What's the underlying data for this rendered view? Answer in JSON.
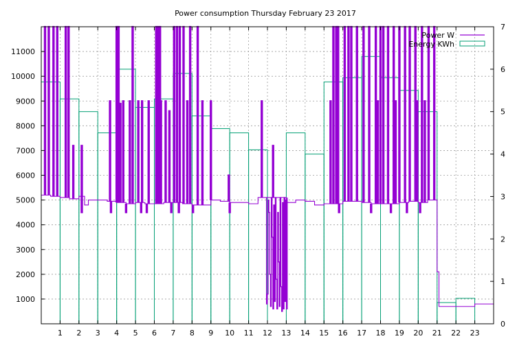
{
  "chart_data": {
    "type": "bar",
    "title": "Power consumption Thursday February 23 2017",
    "legend_position": "top-right",
    "grid": true,
    "x": {
      "range": [
        0,
        24
      ],
      "ticks": [
        1,
        2,
        3,
        4,
        5,
        6,
        7,
        8,
        9,
        10,
        11,
        12,
        13,
        14,
        15,
        16,
        17,
        18,
        19,
        20,
        21,
        22,
        23
      ],
      "label": ""
    },
    "y_left": {
      "range": [
        0,
        12000
      ],
      "ticks": [
        1000,
        2000,
        3000,
        4000,
        5000,
        6000,
        7000,
        8000,
        9000,
        10000,
        11000
      ],
      "label": ""
    },
    "y_right": {
      "range": [
        0,
        7
      ],
      "ticks": [
        0,
        1,
        2,
        3,
        4,
        5,
        6,
        7
      ],
      "label": ""
    },
    "series": [
      {
        "name": "Power W",
        "axis": "left",
        "style": "step",
        "color": "#9400d3",
        "baseline": [
          [
            0.0,
            5200
          ],
          [
            0.5,
            5150
          ],
          [
            1.0,
            5100
          ],
          [
            1.5,
            5050
          ],
          [
            2.0,
            5150
          ],
          [
            2.3,
            4800
          ],
          [
            2.5,
            5000
          ],
          [
            3.0,
            5000
          ],
          [
            3.5,
            4950
          ],
          [
            4.0,
            4900
          ],
          [
            4.5,
            4850
          ],
          [
            5.0,
            4900
          ],
          [
            5.5,
            4850
          ],
          [
            6.0,
            4850
          ],
          [
            6.5,
            4900
          ],
          [
            7.0,
            4900
          ],
          [
            7.5,
            4850
          ],
          [
            8.0,
            4800
          ],
          [
            8.5,
            4800
          ],
          [
            9.0,
            5000
          ],
          [
            9.5,
            4950
          ],
          [
            10.0,
            4900
          ],
          [
            10.5,
            4900
          ],
          [
            11.0,
            4850
          ],
          [
            11.5,
            5100
          ],
          [
            12.5,
            5100
          ],
          [
            13.0,
            4900
          ],
          [
            13.5,
            5000
          ],
          [
            14.0,
            4950
          ],
          [
            14.5,
            4800
          ],
          [
            15.0,
            4850
          ],
          [
            15.5,
            4850
          ],
          [
            16.0,
            4950
          ],
          [
            16.5,
            4950
          ],
          [
            17.0,
            4900
          ],
          [
            17.5,
            4850
          ],
          [
            18.0,
            4850
          ],
          [
            18.5,
            4850
          ],
          [
            19.0,
            4900
          ],
          [
            19.5,
            4950
          ],
          [
            20.0,
            4900
          ],
          [
            20.5,
            5000
          ],
          [
            21.0,
            2100
          ],
          [
            21.1,
            700
          ],
          [
            21.5,
            700
          ],
          [
            22.0,
            700
          ],
          [
            22.5,
            700
          ],
          [
            23.0,
            800
          ],
          [
            23.5,
            800
          ],
          [
            24.0,
            800
          ]
        ],
        "spikes_to": 12000,
        "spikes_at": [
          0.2,
          0.4,
          0.65,
          0.85,
          1.3,
          1.45,
          4.0,
          4.1,
          4.85,
          6.1,
          6.2,
          6.3,
          7.05,
          7.2,
          7.35,
          7.55,
          7.9,
          8.3,
          15.5,
          15.65,
          15.75,
          16.1,
          16.3,
          16.45,
          16.75,
          17.1,
          17.4,
          17.75,
          18.0,
          18.15,
          18.4,
          18.7,
          19.0,
          19.3,
          19.55,
          19.85,
          20.2,
          20.55,
          20.85
        ],
        "spikes_to_9000": [
          3.65,
          4.35,
          4.7,
          5.15,
          5.35,
          5.7,
          6.35,
          6.6,
          7.75,
          8.55,
          9.0,
          15.35,
          17.85,
          18.8,
          19.95,
          20.35
        ],
        "spikes_to_mid": [
          [
            1.7,
            7200
          ],
          [
            2.15,
            7200
          ],
          [
            4.2,
            8900
          ],
          [
            6.8,
            8600
          ],
          [
            9.0,
            6000
          ],
          [
            9.95,
            6000
          ],
          [
            11.7,
            9000
          ],
          [
            12.3,
            7200
          ]
        ],
        "dips": [
          [
            2.15,
            4500
          ],
          [
            3.7,
            4500
          ],
          [
            4.5,
            4500
          ],
          [
            5.3,
            4500
          ],
          [
            5.6,
            4500
          ],
          [
            6.9,
            4500
          ],
          [
            7.3,
            4500
          ],
          [
            8.05,
            4500
          ],
          [
            10.0,
            4500
          ],
          [
            15.8,
            4500
          ],
          [
            17.5,
            4500
          ],
          [
            18.55,
            4500
          ],
          [
            19.4,
            4500
          ],
          [
            20.1,
            4500
          ]
        ],
        "low_band": {
          "from": 11.95,
          "to": 13.05,
          "levels": [
            800,
            1200,
            5000,
            4500,
            2000,
            700,
            5100,
            3500,
            600,
            4800,
            900,
            5100,
            1800,
            600,
            4500,
            2500,
            700,
            5100,
            1500,
            500,
            4900,
            600,
            5100,
            900,
            5000,
            600
          ]
        }
      },
      {
        "name": "Energy KWh",
        "axis": "right",
        "style": "hourly bars",
        "color": "#009e73",
        "values": [
          5.7,
          5.3,
          5.0,
          4.5,
          6.0,
          5.1,
          5.3,
          5.9,
          4.9,
          4.6,
          4.5,
          4.1,
          0,
          4.5,
          4.0,
          5.7,
          5.8,
          6.3,
          5.8,
          5.5,
          5.0,
          0.5,
          0.6,
          0
        ]
      }
    ],
    "legend": [
      {
        "label": "Power W",
        "color": "#9400d3"
      },
      {
        "label": "Energy KWh",
        "color": "#009e73"
      }
    ]
  }
}
